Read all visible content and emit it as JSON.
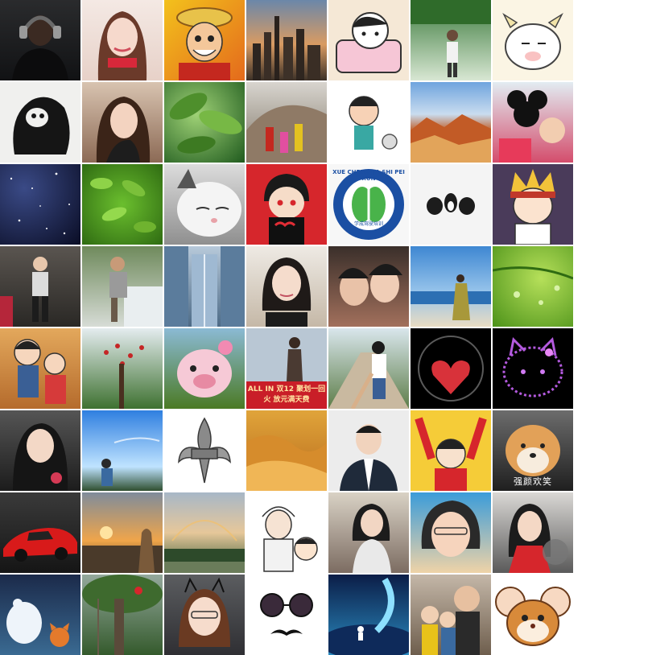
{
  "title": "",
  "grid": {
    "rows": 8,
    "columns": 7,
    "tiles": [
      {
        "row": 1,
        "col": 1,
        "subject": "man-with-headphones-photo"
      },
      {
        "row": 1,
        "col": 2,
        "subject": "young-woman-selfie"
      },
      {
        "row": 1,
        "col": 3,
        "subject": "anime-pirate-straw-hat-cartoon"
      },
      {
        "row": 1,
        "col": 4,
        "subject": "city-skyline-sunset-photo"
      },
      {
        "row": 1,
        "col": 5,
        "subject": "cartoon-girl-with-blanket"
      },
      {
        "row": 1,
        "col": 6,
        "subject": "man-in-garden-photo"
      },
      {
        "row": 1,
        "col": 7,
        "subject": "cartoon-cow-character"
      },
      {
        "row": 2,
        "col": 1,
        "subject": "black-gorilla-logo"
      },
      {
        "row": 2,
        "col": 2,
        "subject": "woman-selfie-hand-on-chin"
      },
      {
        "row": 2,
        "col": 3,
        "subject": "green-leaves-canopy"
      },
      {
        "row": 2,
        "col": 4,
        "subject": "family-at-rock-photo"
      },
      {
        "row": 2,
        "col": 5,
        "subject": "cartoon-girl-with-racket"
      },
      {
        "row": 2,
        "col": 6,
        "subject": "colorful-canyon-landscape"
      },
      {
        "row": 2,
        "col": 7,
        "subject": "child-with-mouse-toy"
      },
      {
        "row": 3,
        "col": 1,
        "subject": "starry-night-sky"
      },
      {
        "row": 3,
        "col": 2,
        "subject": "green-plant-leaves"
      },
      {
        "row": 3,
        "col": 3,
        "subject": "white-cat-close-up"
      },
      {
        "row": 3,
        "col": 4,
        "subject": "anime-ninja-chibi"
      },
      {
        "row": 3,
        "col": 5,
        "subject": "driving-school-circular-logo",
        "text_top": "XUE CHENG JIA SHI PEI XUN",
        "text_bottom": "学成驾驶培训"
      },
      {
        "row": 3,
        "col": 6,
        "subject": "three-small-figurines"
      },
      {
        "row": 3,
        "col": 7,
        "subject": "anime-boy-peace-sign"
      },
      {
        "row": 4,
        "col": 1,
        "subject": "woman-posing-indoors"
      },
      {
        "row": 4,
        "col": 2,
        "subject": "man-by-waterfall"
      },
      {
        "row": 4,
        "col": 3,
        "subject": "glass-building-courtyard"
      },
      {
        "row": 4,
        "col": 4,
        "subject": "woman-portrait-bob-hair"
      },
      {
        "row": 4,
        "col": 5,
        "subject": "couple-selfie"
      },
      {
        "row": 4,
        "col": 6,
        "subject": "woman-on-beach"
      },
      {
        "row": 4,
        "col": 7,
        "subject": "green-leaf-water-drops"
      },
      {
        "row": 5,
        "col": 1,
        "subject": "cartoon-father-and-daughter"
      },
      {
        "row": 5,
        "col": 2,
        "subject": "red-flowering-tree"
      },
      {
        "row": 5,
        "col": 3,
        "subject": "pink-pig-plush-toy"
      },
      {
        "row": 5,
        "col": 4,
        "subject": "woman-by-window-with-banner",
        "banner_text": "ALL IN 双12 聚划一回火 放元满天费"
      },
      {
        "row": 5,
        "col": 5,
        "subject": "holding-hands-walkway"
      },
      {
        "row": 5,
        "col": 6,
        "subject": "heart-in-glass-sphere"
      },
      {
        "row": 5,
        "col": 7,
        "subject": "neon-hello-kitty-outline"
      },
      {
        "row": 6,
        "col": 1,
        "subject": "woman-portrait-with-flower"
      },
      {
        "row": 6,
        "col": 2,
        "subject": "person-under-blue-sky"
      },
      {
        "row": 6,
        "col": 3,
        "subject": "silver-fleur-de-lis-pendant"
      },
      {
        "row": 6,
        "col": 4,
        "subject": "sand-dunes-desert"
      },
      {
        "row": 6,
        "col": 5,
        "subject": "man-in-suit-portrait"
      },
      {
        "row": 6,
        "col": 6,
        "subject": "cartoon-girl-arms-raised"
      },
      {
        "row": 6,
        "col": 7,
        "subject": "shiba-dog-face",
        "caption": "强颜欢笑"
      },
      {
        "row": 7,
        "col": 1,
        "subject": "red-sports-car"
      },
      {
        "row": 7,
        "col": 2,
        "subject": "sunset-statue-town"
      },
      {
        "row": 7,
        "col": 3,
        "subject": "rainbow-over-lake"
      },
      {
        "row": 7,
        "col": 4,
        "subject": "sketch-warrior-with-crayon-boy"
      },
      {
        "row": 7,
        "col": 5,
        "subject": "woman-outdoor-portrait"
      },
      {
        "row": 7,
        "col": 6,
        "subject": "woman-selfie-blue-sky"
      },
      {
        "row": 7,
        "col": 7,
        "subject": "woman-with-scarf-portrait"
      },
      {
        "row": 8,
        "col": 1,
        "subject": "cartoon-bear-and-fox"
      },
      {
        "row": 8,
        "col": 2,
        "subject": "banyan-tree-with-lanterns"
      },
      {
        "row": 8,
        "col": 3,
        "subject": "girl-with-cat-ear-headband"
      },
      {
        "row": 8,
        "col": 4,
        "subject": "sunglasses-and-mustache"
      },
      {
        "row": 8,
        "col": 5,
        "subject": "astronaut-on-planet-illustration"
      },
      {
        "row": 8,
        "col": 6,
        "subject": "man-with-two-children"
      },
      {
        "row": 8,
        "col": 7,
        "subject": "cartoon-mouse-face"
      }
    ]
  },
  "colors": {
    "background": "#ffffff"
  }
}
